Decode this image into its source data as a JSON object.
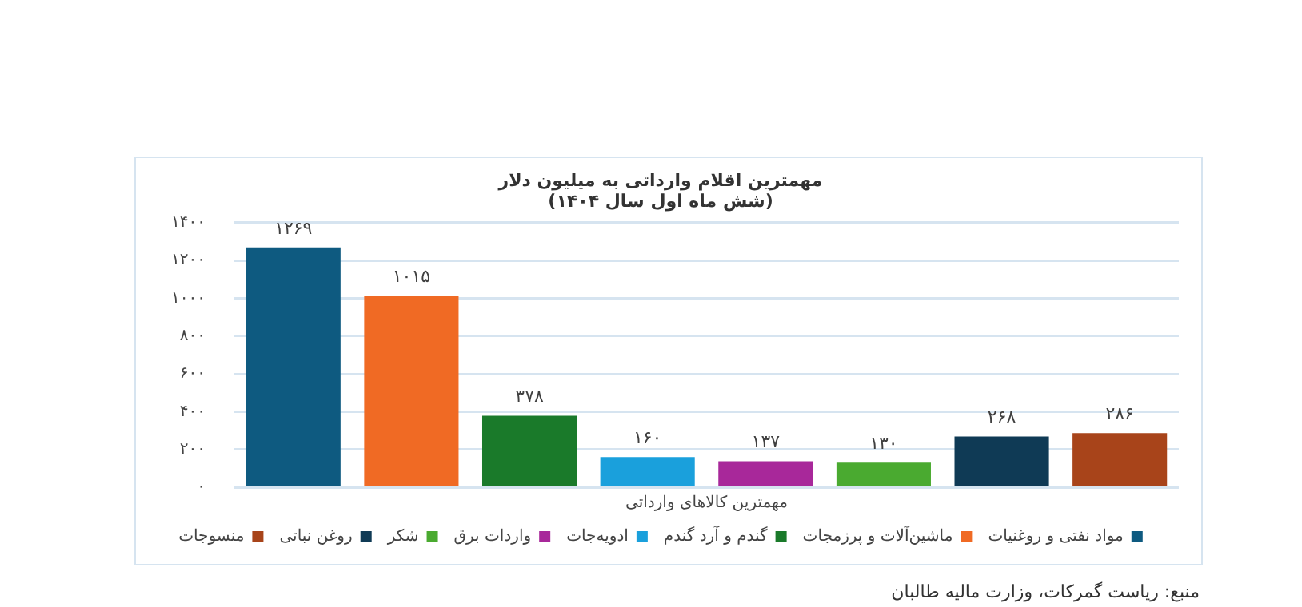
{
  "chart_data": {
    "type": "bar",
    "title": "مهمترین اقلام وارداتی به میلیون دلار",
    "subtitle": "(شش ماه اول سال ۱۴۰۴)",
    "xlabel": "مهمترین کالاهای وارداتی",
    "categories": [
      null,
      null,
      null,
      null,
      null,
      null,
      null,
      null
    ],
    "series": [
      {
        "name": "مواد نفتی و روغنیات",
        "color": "#0e5a80",
        "values": [
          1269,
          null,
          null,
          null,
          null,
          null,
          null,
          null
        ],
        "value_labels": [
          "۱۲۶۹",
          null,
          null,
          null,
          null,
          null,
          null,
          null
        ]
      },
      {
        "name": "ماشین‌آلات و پرزمجات",
        "color": "#f06a24",
        "values": [
          null,
          1015,
          null,
          null,
          null,
          null,
          null,
          null
        ],
        "value_labels": [
          null,
          "۱۰۱۵",
          null,
          null,
          null,
          null,
          null,
          null
        ]
      },
      {
        "name": "گندم و آرد گندم",
        "color": "#1a7a2a",
        "values": [
          null,
          null,
          378,
          null,
          null,
          null,
          null,
          null
        ],
        "value_labels": [
          null,
          null,
          "۳۷۸",
          null,
          null,
          null,
          null,
          null
        ]
      },
      {
        "name": "ادویه‌جات",
        "color": "#1aa0dc",
        "values": [
          null,
          null,
          null,
          160,
          null,
          null,
          null,
          null
        ],
        "value_labels": [
          null,
          null,
          null,
          "۱۶۰",
          null,
          null,
          null,
          null
        ]
      },
      {
        "name": "واردات برق",
        "color": "#a8289a",
        "values": [
          null,
          null,
          null,
          null,
          137,
          null,
          null,
          null
        ],
        "value_labels": [
          null,
          null,
          null,
          null,
          "۱۳۷",
          null,
          null,
          null
        ]
      },
      {
        "name": "شکر",
        "color": "#4aaa30",
        "values": [
          null,
          null,
          null,
          null,
          null,
          130,
          null,
          null
        ],
        "value_labels": [
          null,
          null,
          null,
          null,
          null,
          "۱۳۰",
          null,
          null
        ]
      },
      {
        "name": "روغن نباتی",
        "color": "#0f3a55",
        "values": [
          null,
          null,
          null,
          null,
          null,
          null,
          268,
          null
        ],
        "value_labels": [
          null,
          null,
          null,
          null,
          null,
          null,
          "۲۶۸",
          null
        ]
      },
      {
        "name": "منسوجات",
        "color": "#a8441a",
        "values": [
          null,
          null,
          null,
          null,
          null,
          null,
          null,
          286
        ],
        "value_labels": [
          null,
          null,
          null,
          null,
          null,
          null,
          null,
          "۲۸۶"
        ]
      }
    ],
    "ylim": [
      0,
      1400
    ],
    "yticks": [
      {
        "value": 0,
        "label": "۰"
      },
      {
        "value": 200,
        "label": "۲۰۰"
      },
      {
        "value": 400,
        "label": "۴۰۰"
      },
      {
        "value": 600,
        "label": "۶۰۰"
      },
      {
        "value": 800,
        "label": "۸۰۰"
      },
      {
        "value": 1000,
        "label": "۱۰۰۰"
      },
      {
        "value": 1200,
        "label": "۱۲۰۰"
      },
      {
        "value": 1400,
        "label": "۱۴۰۰"
      }
    ],
    "grid": "y",
    "legend": "bottom",
    "tick_labels": "y",
    "annotations": [
      "منبع: ریاست گمرکات، وزارت مالیه طالبان"
    ]
  }
}
